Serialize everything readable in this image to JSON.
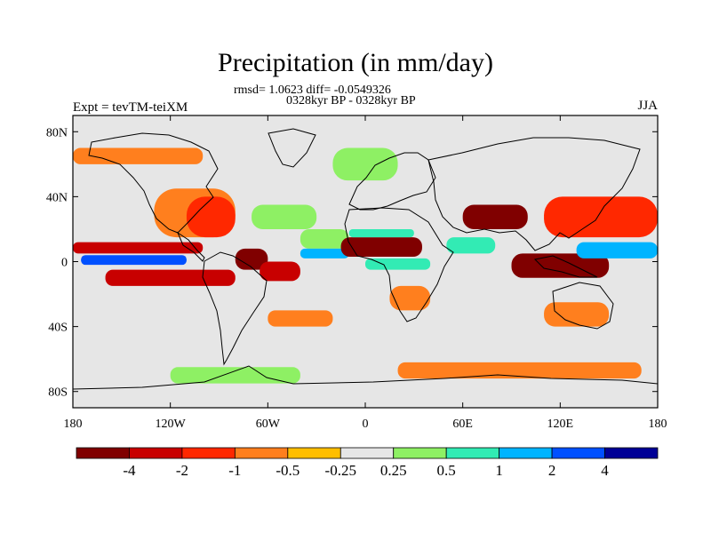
{
  "header": {
    "title": "Precipitation (in mm/day)",
    "stats_line": "rmsd= 1.0623 diff= -0.0549326",
    "period_line": "0328kyr BP - 0328kyr BP",
    "experiment_label": "Expt = tevTM-teiXM",
    "season_label": "JJA"
  },
  "map": {
    "projection": "cylindrical-equidistant",
    "lon_range": [
      -180,
      180
    ],
    "lat_range": [
      -90,
      90
    ],
    "background_color": "#e6e6e6",
    "lon_ticks": [
      {
        "value": -180,
        "label": "180"
      },
      {
        "value": -120,
        "label": "120W"
      },
      {
        "value": -60,
        "label": "60W"
      },
      {
        "value": 0,
        "label": "0"
      },
      {
        "value": 60,
        "label": "60E"
      },
      {
        "value": 120,
        "label": "120E"
      },
      {
        "value": 180,
        "label": "180"
      }
    ],
    "lat_ticks": [
      {
        "value": 80,
        "label": "80N"
      },
      {
        "value": 40,
        "label": "40N"
      },
      {
        "value": 0,
        "label": "0"
      },
      {
        "value": -40,
        "label": "40S"
      },
      {
        "value": -80,
        "label": "80S"
      }
    ]
  },
  "colorbar": {
    "colors": [
      "#800000",
      "#c80000",
      "#ff2800",
      "#ff7f1e",
      "#ffbe00",
      "#e6e6e6",
      "#8ef064",
      "#32ebb4",
      "#00b4ff",
      "#0050ff",
      "#000096"
    ],
    "labels": [
      "-4",
      "-2",
      "-1",
      "-0.5",
      "-0.25",
      "0.25",
      "0.5",
      "1",
      "2",
      "4"
    ]
  },
  "chart_data": {
    "type": "heatmap",
    "title": "Precipitation (in mm/day)",
    "subtitle": "rmsd= 1.0623 diff= -0.0549326",
    "x_range": [
      -180,
      180
    ],
    "y_range": [
      -90,
      90
    ],
    "x_ticks": [
      "180",
      "120W",
      "60W",
      "0",
      "60E",
      "120E",
      "180"
    ],
    "y_ticks": [
      "80N",
      "40N",
      "0",
      "40S",
      "80S"
    ],
    "levels": [
      -4,
      -2,
      -1,
      -0.5,
      -0.25,
      0.25,
      0.5,
      1,
      2,
      4
    ],
    "anomaly_regions": [
      {
        "lon": [
          -180,
          -100
        ],
        "lat": [
          5,
          12
        ],
        "value": -2
      },
      {
        "lon": [
          -175,
          -110
        ],
        "lat": [
          -2,
          4
        ],
        "value": 3
      },
      {
        "lon": [
          -160,
          -80
        ],
        "lat": [
          -15,
          -5
        ],
        "value": -2
      },
      {
        "lon": [
          -130,
          -80
        ],
        "lat": [
          15,
          45
        ],
        "value": -0.5
      },
      {
        "lon": [
          -110,
          -80
        ],
        "lat": [
          15,
          40
        ],
        "value": -1
      },
      {
        "lon": [
          -80,
          -60
        ],
        "lat": [
          -5,
          8
        ],
        "value": -4
      },
      {
        "lon": [
          -65,
          -40
        ],
        "lat": [
          -12,
          0
        ],
        "value": -2
      },
      {
        "lon": [
          -70,
          -30
        ],
        "lat": [
          20,
          35
        ],
        "value": 0.5
      },
      {
        "lon": [
          -40,
          -10
        ],
        "lat": [
          8,
          20
        ],
        "value": 0.5
      },
      {
        "lon": [
          -40,
          -10
        ],
        "lat": [
          2,
          8
        ],
        "value": 2
      },
      {
        "lon": [
          -15,
          35
        ],
        "lat": [
          3,
          15
        ],
        "value": -4
      },
      {
        "lon": [
          -10,
          30
        ],
        "lat": [
          15,
          20
        ],
        "value": 1
      },
      {
        "lon": [
          0,
          40
        ],
        "lat": [
          -5,
          2
        ],
        "value": 1
      },
      {
        "lon": [
          15,
          40
        ],
        "lat": [
          -30,
          -15
        ],
        "value": -0.5
      },
      {
        "lon": [
          60,
          100
        ],
        "lat": [
          20,
          35
        ],
        "value": -4
      },
      {
        "lon": [
          50,
          80
        ],
        "lat": [
          5,
          15
        ],
        "value": 1
      },
      {
        "lon": [
          90,
          150
        ],
        "lat": [
          -10,
          5
        ],
        "value": -4
      },
      {
        "lon": [
          130,
          180
        ],
        "lat": [
          2,
          12
        ],
        "value": 2
      },
      {
        "lon": [
          110,
          180
        ],
        "lat": [
          15,
          40
        ],
        "value": -1
      },
      {
        "lon": [
          110,
          150
        ],
        "lat": [
          -40,
          -25
        ],
        "value": -0.5
      },
      {
        "lon": [
          -120,
          -40
        ],
        "lat": [
          -75,
          -65
        ],
        "value": 0.5
      },
      {
        "lon": [
          20,
          170
        ],
        "lat": [
          -72,
          -62
        ],
        "value": -0.5
      },
      {
        "lon": [
          -20,
          20
        ],
        "lat": [
          50,
          70
        ],
        "value": 0.5
      },
      {
        "lon": [
          -180,
          -100
        ],
        "lat": [
          60,
          70
        ],
        "value": -0.5
      },
      {
        "lon": [
          -60,
          -20
        ],
        "lat": [
          -40,
          -30
        ],
        "value": -0.5
      }
    ]
  }
}
